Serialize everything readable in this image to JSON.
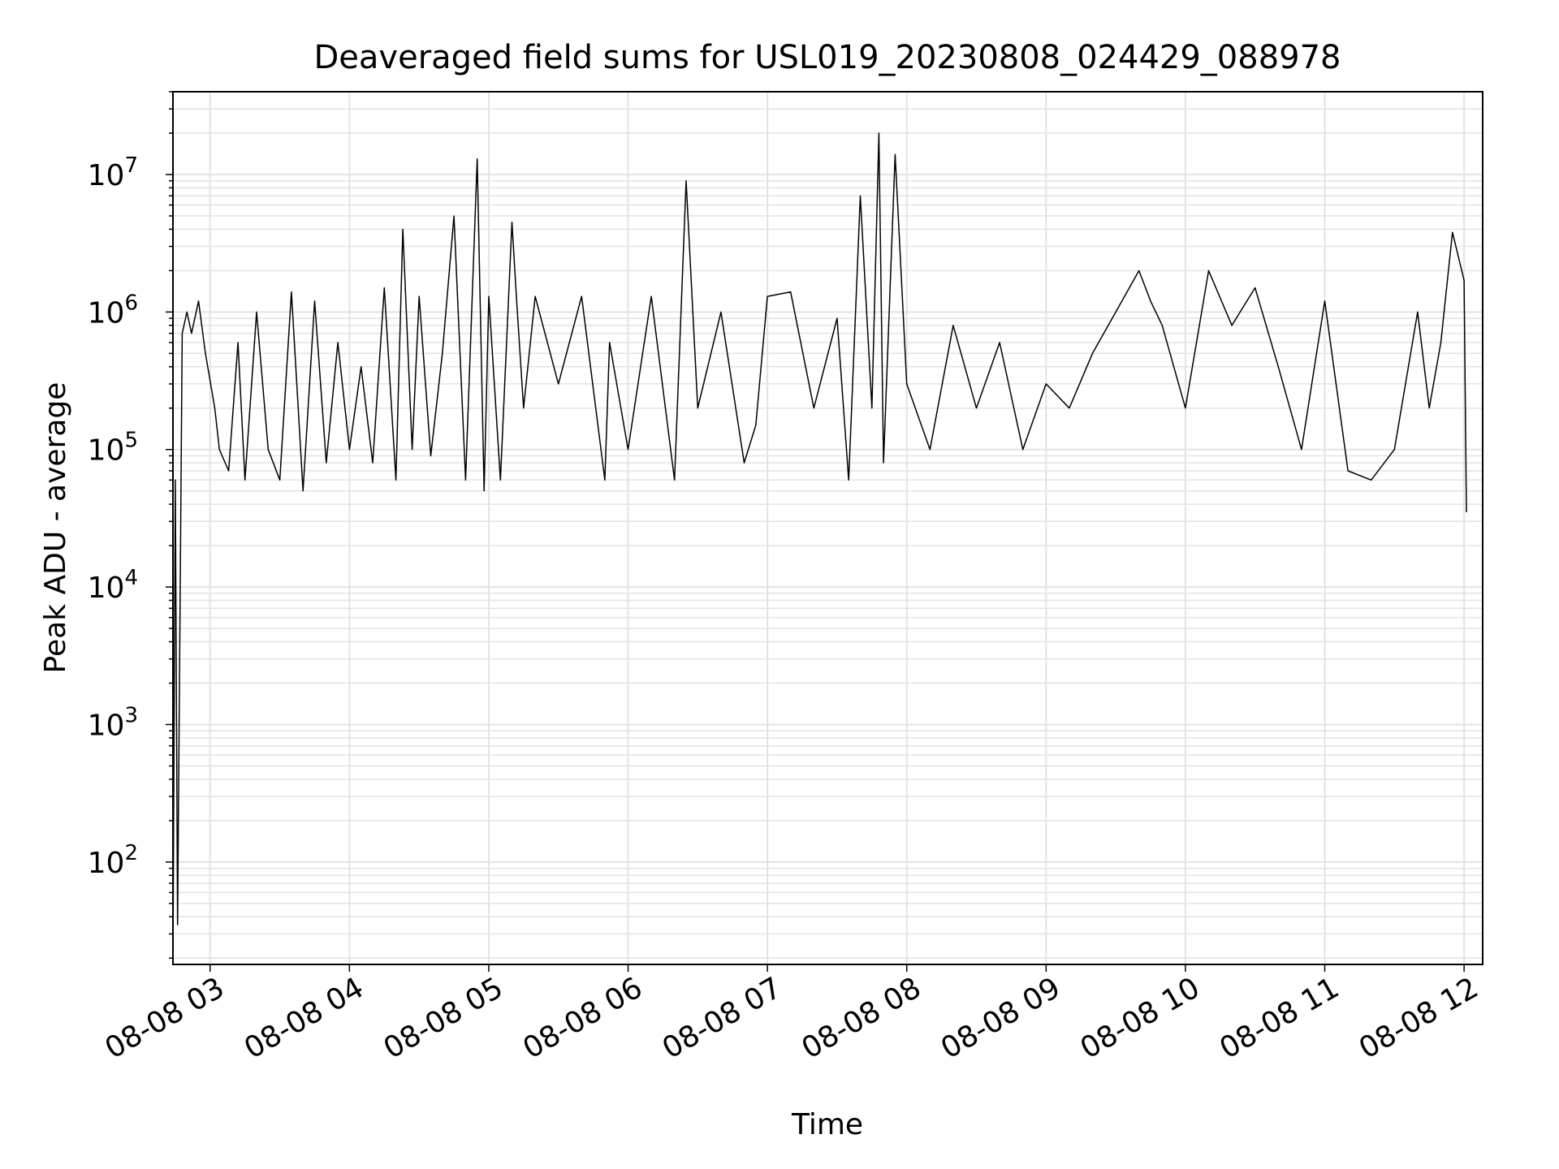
{
  "chart_data": {
    "type": "line",
    "title": "Deaveraged field sums for USL019_20230808_024429_088978",
    "xlabel": "Time",
    "ylabel": "Peak ADU - average",
    "y_scale": "log",
    "grid": true,
    "ylim": [
      18,
      40000000
    ],
    "xlim": [
      "2023-08-08 02:44",
      "2023-08-08 12:08"
    ],
    "x_ticks": [
      "08-08 03",
      "08-08 04",
      "08-08 05",
      "08-08 06",
      "08-08 07",
      "08-08 08",
      "08-08 09",
      "08-08 10",
      "08-08 11",
      "08-08 12"
    ],
    "y_ticks": [
      {
        "value": 100,
        "base": "10",
        "exp": "2"
      },
      {
        "value": 1000,
        "base": "10",
        "exp": "3"
      },
      {
        "value": 10000,
        "base": "10",
        "exp": "4"
      },
      {
        "value": 100000,
        "base": "10",
        "exp": "5"
      },
      {
        "value": 1000000,
        "base": "10",
        "exp": "6"
      },
      {
        "value": 10000000,
        "base": "10",
        "exp": "7"
      }
    ],
    "line_color": "#000000",
    "grid_color": "#e3e3e3",
    "series": [
      {
        "x": [
          "2023-08-08 02:44",
          "2023-08-08 02:45",
          "2023-08-08 02:46",
          "2023-08-08 02:48",
          "2023-08-08 02:50",
          "2023-08-08 02:52",
          "2023-08-08 02:55",
          "2023-08-08 02:58",
          "2023-08-08 03:02",
          "2023-08-08 03:04",
          "2023-08-08 03:08",
          "2023-08-08 03:12",
          "2023-08-08 03:15",
          "2023-08-08 03:20",
          "2023-08-08 03:25",
          "2023-08-08 03:30",
          "2023-08-08 03:35",
          "2023-08-08 03:40",
          "2023-08-08 03:45",
          "2023-08-08 03:50",
          "2023-08-08 03:55",
          "2023-08-08 04:00",
          "2023-08-08 04:05",
          "2023-08-08 04:10",
          "2023-08-08 04:15",
          "2023-08-08 04:20",
          "2023-08-08 04:23",
          "2023-08-08 04:27",
          "2023-08-08 04:30",
          "2023-08-08 04:35",
          "2023-08-08 04:40",
          "2023-08-08 04:45",
          "2023-08-08 04:50",
          "2023-08-08 04:55",
          "2023-08-08 04:58",
          "2023-08-08 05:00",
          "2023-08-08 05:05",
          "2023-08-08 05:10",
          "2023-08-08 05:12",
          "2023-08-08 05:15",
          "2023-08-08 05:20",
          "2023-08-08 05:30",
          "2023-08-08 05:40",
          "2023-08-08 05:50",
          "2023-08-08 05:52",
          "2023-08-08 06:00",
          "2023-08-08 06:10",
          "2023-08-08 06:20",
          "2023-08-08 06:25",
          "2023-08-08 06:30",
          "2023-08-08 06:40",
          "2023-08-08 06:50",
          "2023-08-08 06:55",
          "2023-08-08 07:00",
          "2023-08-08 07:10",
          "2023-08-08 07:20",
          "2023-08-08 07:30",
          "2023-08-08 07:35",
          "2023-08-08 07:40",
          "2023-08-08 07:45",
          "2023-08-08 07:48",
          "2023-08-08 07:50",
          "2023-08-08 07:55",
          "2023-08-08 08:00",
          "2023-08-08 08:10",
          "2023-08-08 08:20",
          "2023-08-08 08:30",
          "2023-08-08 08:40",
          "2023-08-08 08:50",
          "2023-08-08 09:00",
          "2023-08-08 09:10",
          "2023-08-08 09:20",
          "2023-08-08 09:30",
          "2023-08-08 09:40",
          "2023-08-08 09:45",
          "2023-08-08 09:50",
          "2023-08-08 10:00",
          "2023-08-08 10:10",
          "2023-08-08 10:20",
          "2023-08-08 10:30",
          "2023-08-08 10:40",
          "2023-08-08 10:50",
          "2023-08-08 11:00",
          "2023-08-08 11:10",
          "2023-08-08 11:20",
          "2023-08-08 11:30",
          "2023-08-08 11:40",
          "2023-08-08 11:45",
          "2023-08-08 11:50",
          "2023-08-08 11:55",
          "2023-08-08 12:00",
          "2023-08-08 12:01"
        ],
        "y": [
          20,
          60000,
          35,
          700000,
          1000000,
          700000,
          1200000,
          500000,
          200000,
          100000,
          70000,
          600000,
          60000,
          1000000,
          100000,
          60000,
          1400000,
          50000,
          1200000,
          80000,
          600000,
          100000,
          400000,
          80000,
          1500000,
          60000,
          4000000,
          100000,
          1300000,
          90000,
          500000,
          5000000,
          60000,
          13000000,
          50000,
          1300000,
          60000,
          4500000,
          1200000,
          200000,
          1300000,
          300000,
          1300000,
          60000,
          600000,
          100000,
          1300000,
          60000,
          9000000,
          200000,
          1000000,
          80000,
          150000,
          1300000,
          1400000,
          200000,
          900000,
          60000,
          7000000,
          200000,
          20000000,
          80000,
          14000000,
          300000,
          100000,
          800000,
          200000,
          600000,
          100000,
          300000,
          200000,
          500000,
          1000000,
          2000000,
          1200000,
          800000,
          200000,
          2000000,
          800000,
          1500000,
          400000,
          100000,
          1200000,
          70000,
          60000,
          100000,
          1000000,
          200000,
          600000,
          3800000,
          1700000,
          35000
        ]
      }
    ]
  }
}
